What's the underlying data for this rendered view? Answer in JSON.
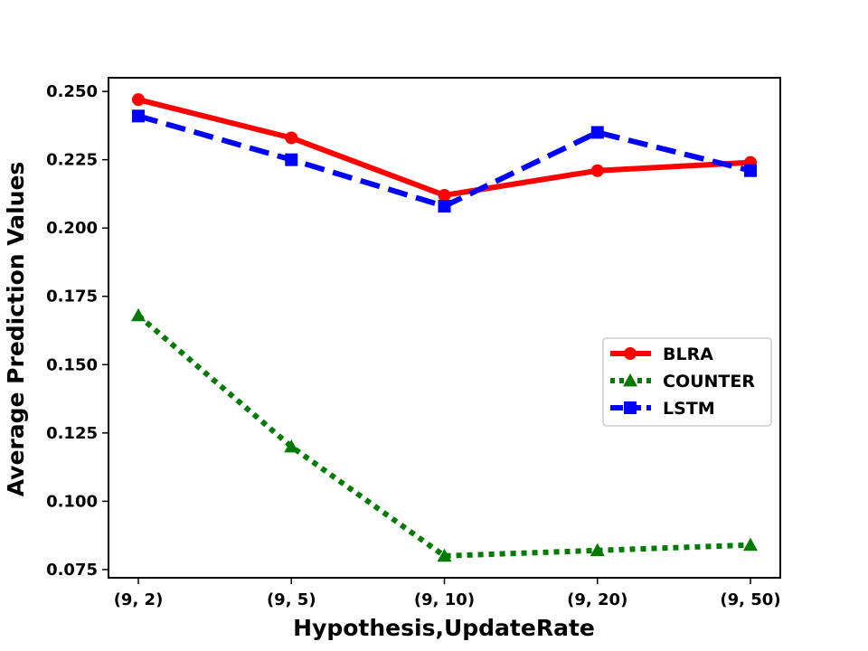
{
  "chart_data": {
    "type": "line",
    "title": "",
    "xlabel": "Hypothesis,UpdateRate",
    "ylabel": "Average Prediction Values",
    "categories": [
      "(9, 2)",
      "(9, 5)",
      "(9, 10)",
      "(9, 20)",
      "(9, 50)"
    ],
    "ylim": [
      0.072,
      0.255
    ],
    "yticks": [
      "0.075",
      "0.100",
      "0.125",
      "0.150",
      "0.175",
      "0.200",
      "0.225",
      "0.250"
    ],
    "grid": false,
    "legend_position": "center-right",
    "series": [
      {
        "name": "BLRA",
        "values": [
          0.247,
          0.233,
          0.212,
          0.221,
          0.224
        ],
        "color": "#ff0000",
        "marker": "circle",
        "linestyle": "solid"
      },
      {
        "name": "COUNTER",
        "values": [
          0.168,
          0.12,
          0.08,
          0.082,
          0.084
        ],
        "color": "#007a00",
        "marker": "triangle",
        "linestyle": "dotted"
      },
      {
        "name": "LSTM",
        "values": [
          0.241,
          0.225,
          0.208,
          0.235,
          0.221
        ],
        "color": "#0000ff",
        "marker": "square",
        "linestyle": "dashed"
      }
    ]
  }
}
